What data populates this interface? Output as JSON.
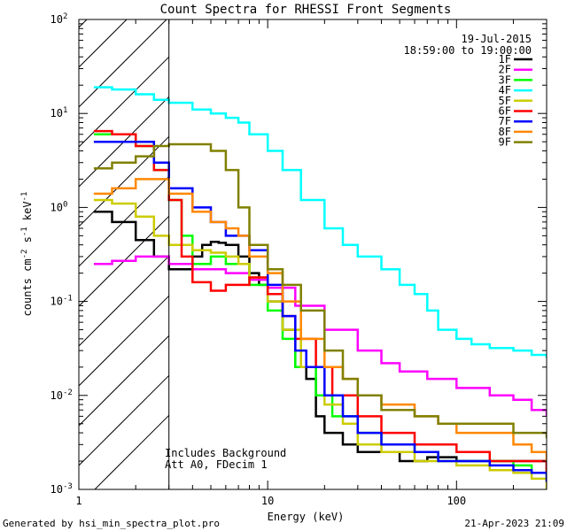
{
  "chart_data": {
    "type": "line",
    "title": "Count Spectra for RHESSI Front Segments",
    "xlabel": "Energy (keV)",
    "ylabel": "counts cm^-2 s^-1 keV^-1",
    "xscale": "log",
    "yscale": "log",
    "xlim": [
      1,
      300
    ],
    "ylim": [
      0.001,
      100
    ],
    "x_major_ticks": [
      1,
      10,
      100
    ],
    "y_major_ticks": [
      0.001,
      0.01,
      0.1,
      1,
      10,
      100
    ],
    "x_tick_labels": [
      "1",
      "10",
      "100"
    ],
    "y_tick_labels": [
      {
        "base": "10",
        "exp": "-3"
      },
      {
        "base": "10",
        "exp": "-2"
      },
      {
        "base": "10",
        "exp": "-1"
      },
      {
        "base": "10",
        "exp": "0"
      },
      {
        "base": "10",
        "exp": "1"
      },
      {
        "base": "10",
        "exp": "2"
      }
    ],
    "date": "19-Jul-2015",
    "time_range": "18:59:00 to 19:00:00",
    "annotations": [
      "Includes Background",
      "Att A0, FDecim 1"
    ],
    "footer_left": "Generated by hsi_min_spectra_plot.pro",
    "footer_right": "21-Apr-2023 21:09",
    "hatched_region": {
      "xmin": 1,
      "xmax": 3
    },
    "legend_position": "top-right",
    "series": [
      {
        "name": "1F",
        "color": "#000000",
        "x": [
          1.2,
          1.5,
          2,
          2.5,
          3,
          3.5,
          4,
          4.5,
          5,
          5.5,
          6,
          7,
          8,
          9,
          10,
          12,
          14,
          16,
          18,
          20,
          25,
          30,
          40,
          50,
          70,
          100,
          150,
          200,
          250,
          300
        ],
        "y": [
          0.9,
          0.7,
          0.45,
          0.3,
          0.22,
          0.22,
          0.3,
          0.4,
          0.43,
          0.42,
          0.4,
          0.3,
          0.2,
          0.15,
          0.1,
          0.05,
          0.02,
          0.015,
          0.006,
          0.004,
          0.003,
          0.0025,
          0.0025,
          0.002,
          0.0022,
          0.002,
          0.002,
          0.002,
          0.002,
          0.0015
        ]
      },
      {
        "name": "2F",
        "color": "#ff00ff",
        "x": [
          1.2,
          1.5,
          2,
          2.5,
          3,
          4,
          5,
          6,
          8,
          10,
          14,
          20,
          30,
          40,
          50,
          70,
          100,
          150,
          200,
          250,
          300
        ],
        "y": [
          0.25,
          0.27,
          0.3,
          0.3,
          0.25,
          0.22,
          0.22,
          0.2,
          0.17,
          0.14,
          0.09,
          0.05,
          0.03,
          0.022,
          0.018,
          0.015,
          0.012,
          0.01,
          0.009,
          0.007,
          0.006
        ]
      },
      {
        "name": "3F",
        "color": "#00ff00",
        "x": [
          1.2,
          1.5,
          2,
          2.5,
          3,
          3.5,
          4,
          5,
          6,
          8,
          10,
          12,
          14,
          18,
          22,
          30,
          40,
          60,
          80,
          100,
          150,
          200,
          250,
          300
        ],
        "y": [
          6,
          6,
          4.5,
          2.5,
          1.2,
          0.5,
          0.25,
          0.3,
          0.25,
          0.15,
          0.08,
          0.04,
          0.02,
          0.01,
          0.006,
          0.004,
          0.003,
          0.0025,
          0.002,
          0.002,
          0.002,
          0.0018,
          0.0015,
          0.0012
        ]
      },
      {
        "name": "4F",
        "color": "#00ffff",
        "x": [
          1.2,
          1.5,
          2,
          2.5,
          3,
          4,
          5,
          6,
          7,
          8,
          10,
          12,
          15,
          20,
          25,
          30,
          40,
          50,
          60,
          70,
          80,
          100,
          120,
          150,
          200,
          250,
          300
        ],
        "y": [
          19,
          18,
          16,
          14,
          13,
          11,
          10,
          9,
          8,
          6,
          4,
          2.5,
          1.2,
          0.6,
          0.4,
          0.3,
          0.22,
          0.15,
          0.12,
          0.08,
          0.05,
          0.04,
          0.035,
          0.032,
          0.03,
          0.027,
          0.025
        ]
      },
      {
        "name": "5F",
        "color": "#cccc00",
        "x": [
          1.2,
          1.5,
          2,
          2.5,
          3,
          3.5,
          4,
          5,
          6,
          7,
          8,
          10,
          12,
          15,
          20,
          25,
          30,
          40,
          60,
          80,
          100,
          150,
          200,
          250,
          300
        ],
        "y": [
          1.2,
          1.1,
          0.8,
          0.5,
          0.4,
          0.4,
          0.35,
          0.33,
          0.3,
          0.25,
          0.18,
          0.1,
          0.05,
          0.02,
          0.008,
          0.005,
          0.003,
          0.0025,
          0.002,
          0.002,
          0.0018,
          0.0016,
          0.0015,
          0.0013,
          0.001
        ]
      },
      {
        "name": "6F",
        "color": "#ff0000",
        "x": [
          1.2,
          1.5,
          2,
          2.5,
          3,
          3.5,
          4,
          5,
          6,
          8,
          10,
          12,
          14,
          18,
          22,
          30,
          40,
          60,
          80,
          100,
          150,
          200,
          250,
          300
        ],
        "y": [
          6.5,
          6,
          4.5,
          2.5,
          1.2,
          0.3,
          0.16,
          0.13,
          0.15,
          0.18,
          0.12,
          0.07,
          0.04,
          0.02,
          0.01,
          0.006,
          0.004,
          0.003,
          0.003,
          0.0025,
          0.002,
          0.002,
          0.002,
          0.0015
        ]
      },
      {
        "name": "7F",
        "color": "#0000ff",
        "x": [
          1.2,
          1.5,
          2,
          2.5,
          3,
          4,
          5,
          6,
          8,
          10,
          12,
          14,
          16,
          20,
          25,
          30,
          40,
          60,
          80,
          100,
          150,
          200,
          250,
          300
        ],
        "y": [
          5,
          5,
          5,
          3,
          1.6,
          1,
          0.7,
          0.5,
          0.35,
          0.15,
          0.07,
          0.03,
          0.02,
          0.01,
          0.006,
          0.004,
          0.003,
          0.0025,
          0.002,
          0.002,
          0.0018,
          0.0016,
          0.0015,
          0.0012
        ]
      },
      {
        "name": "8F",
        "color": "#ff8800",
        "x": [
          1.2,
          1.5,
          2,
          2.5,
          3,
          4,
          5,
          6,
          7,
          8,
          10,
          12,
          15,
          20,
          25,
          30,
          40,
          60,
          80,
          100,
          150,
          200,
          250,
          300
        ],
        "y": [
          1.4,
          1.6,
          2,
          2,
          1.4,
          0.9,
          0.7,
          0.6,
          0.5,
          0.3,
          0.2,
          0.1,
          0.04,
          0.02,
          0.015,
          0.01,
          0.008,
          0.006,
          0.005,
          0.004,
          0.004,
          0.003,
          0.0025,
          0.002
        ]
      },
      {
        "name": "9F",
        "color": "#808000",
        "x": [
          1.2,
          1.5,
          2,
          2.5,
          3,
          4,
          5,
          6,
          7,
          8,
          10,
          12,
          15,
          20,
          25,
          30,
          40,
          60,
          80,
          100,
          150,
          200,
          250,
          300
        ],
        "y": [
          2.6,
          3,
          3.5,
          4.5,
          4.7,
          4.7,
          4,
          2.5,
          1,
          0.4,
          0.22,
          0.15,
          0.08,
          0.03,
          0.015,
          0.01,
          0.007,
          0.006,
          0.005,
          0.005,
          0.005,
          0.004,
          0.004,
          0.0035
        ]
      }
    ]
  }
}
